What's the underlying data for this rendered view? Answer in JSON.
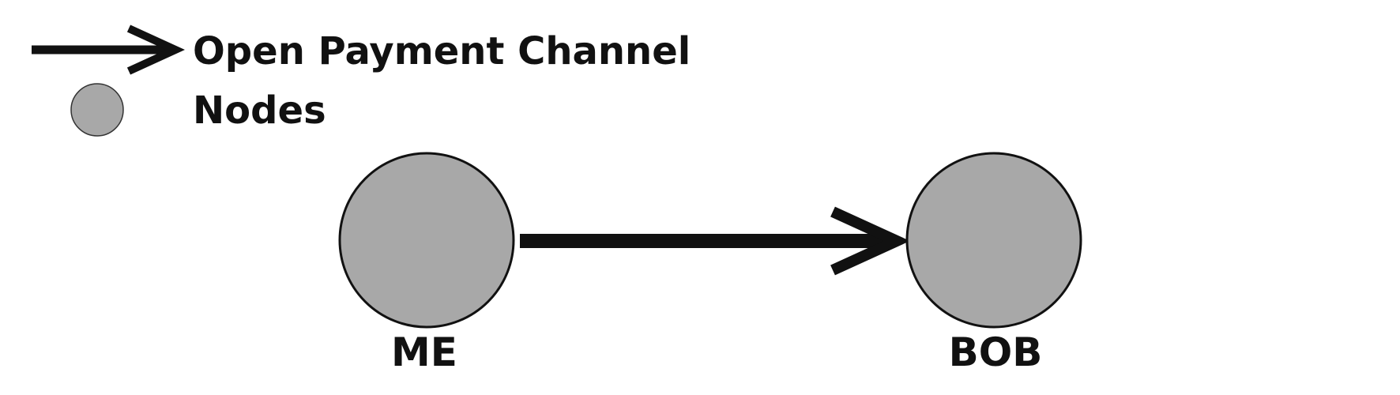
{
  "legend": {
    "channel_label": "Open Payment Channel",
    "node_label": "Nodes",
    "channel_icon": "arrow-right-icon",
    "node_icon": "circle-node-icon"
  },
  "nodes": [
    {
      "id": "me",
      "label": "ME"
    },
    {
      "id": "bob",
      "label": "BOB"
    }
  ],
  "edges": [
    {
      "from": "ME",
      "to": "BOB",
      "type": "Open Payment Channel"
    }
  ],
  "colors": {
    "node_fill": "#a8a8a8",
    "stroke": "#111111",
    "background": "#ffffff"
  }
}
